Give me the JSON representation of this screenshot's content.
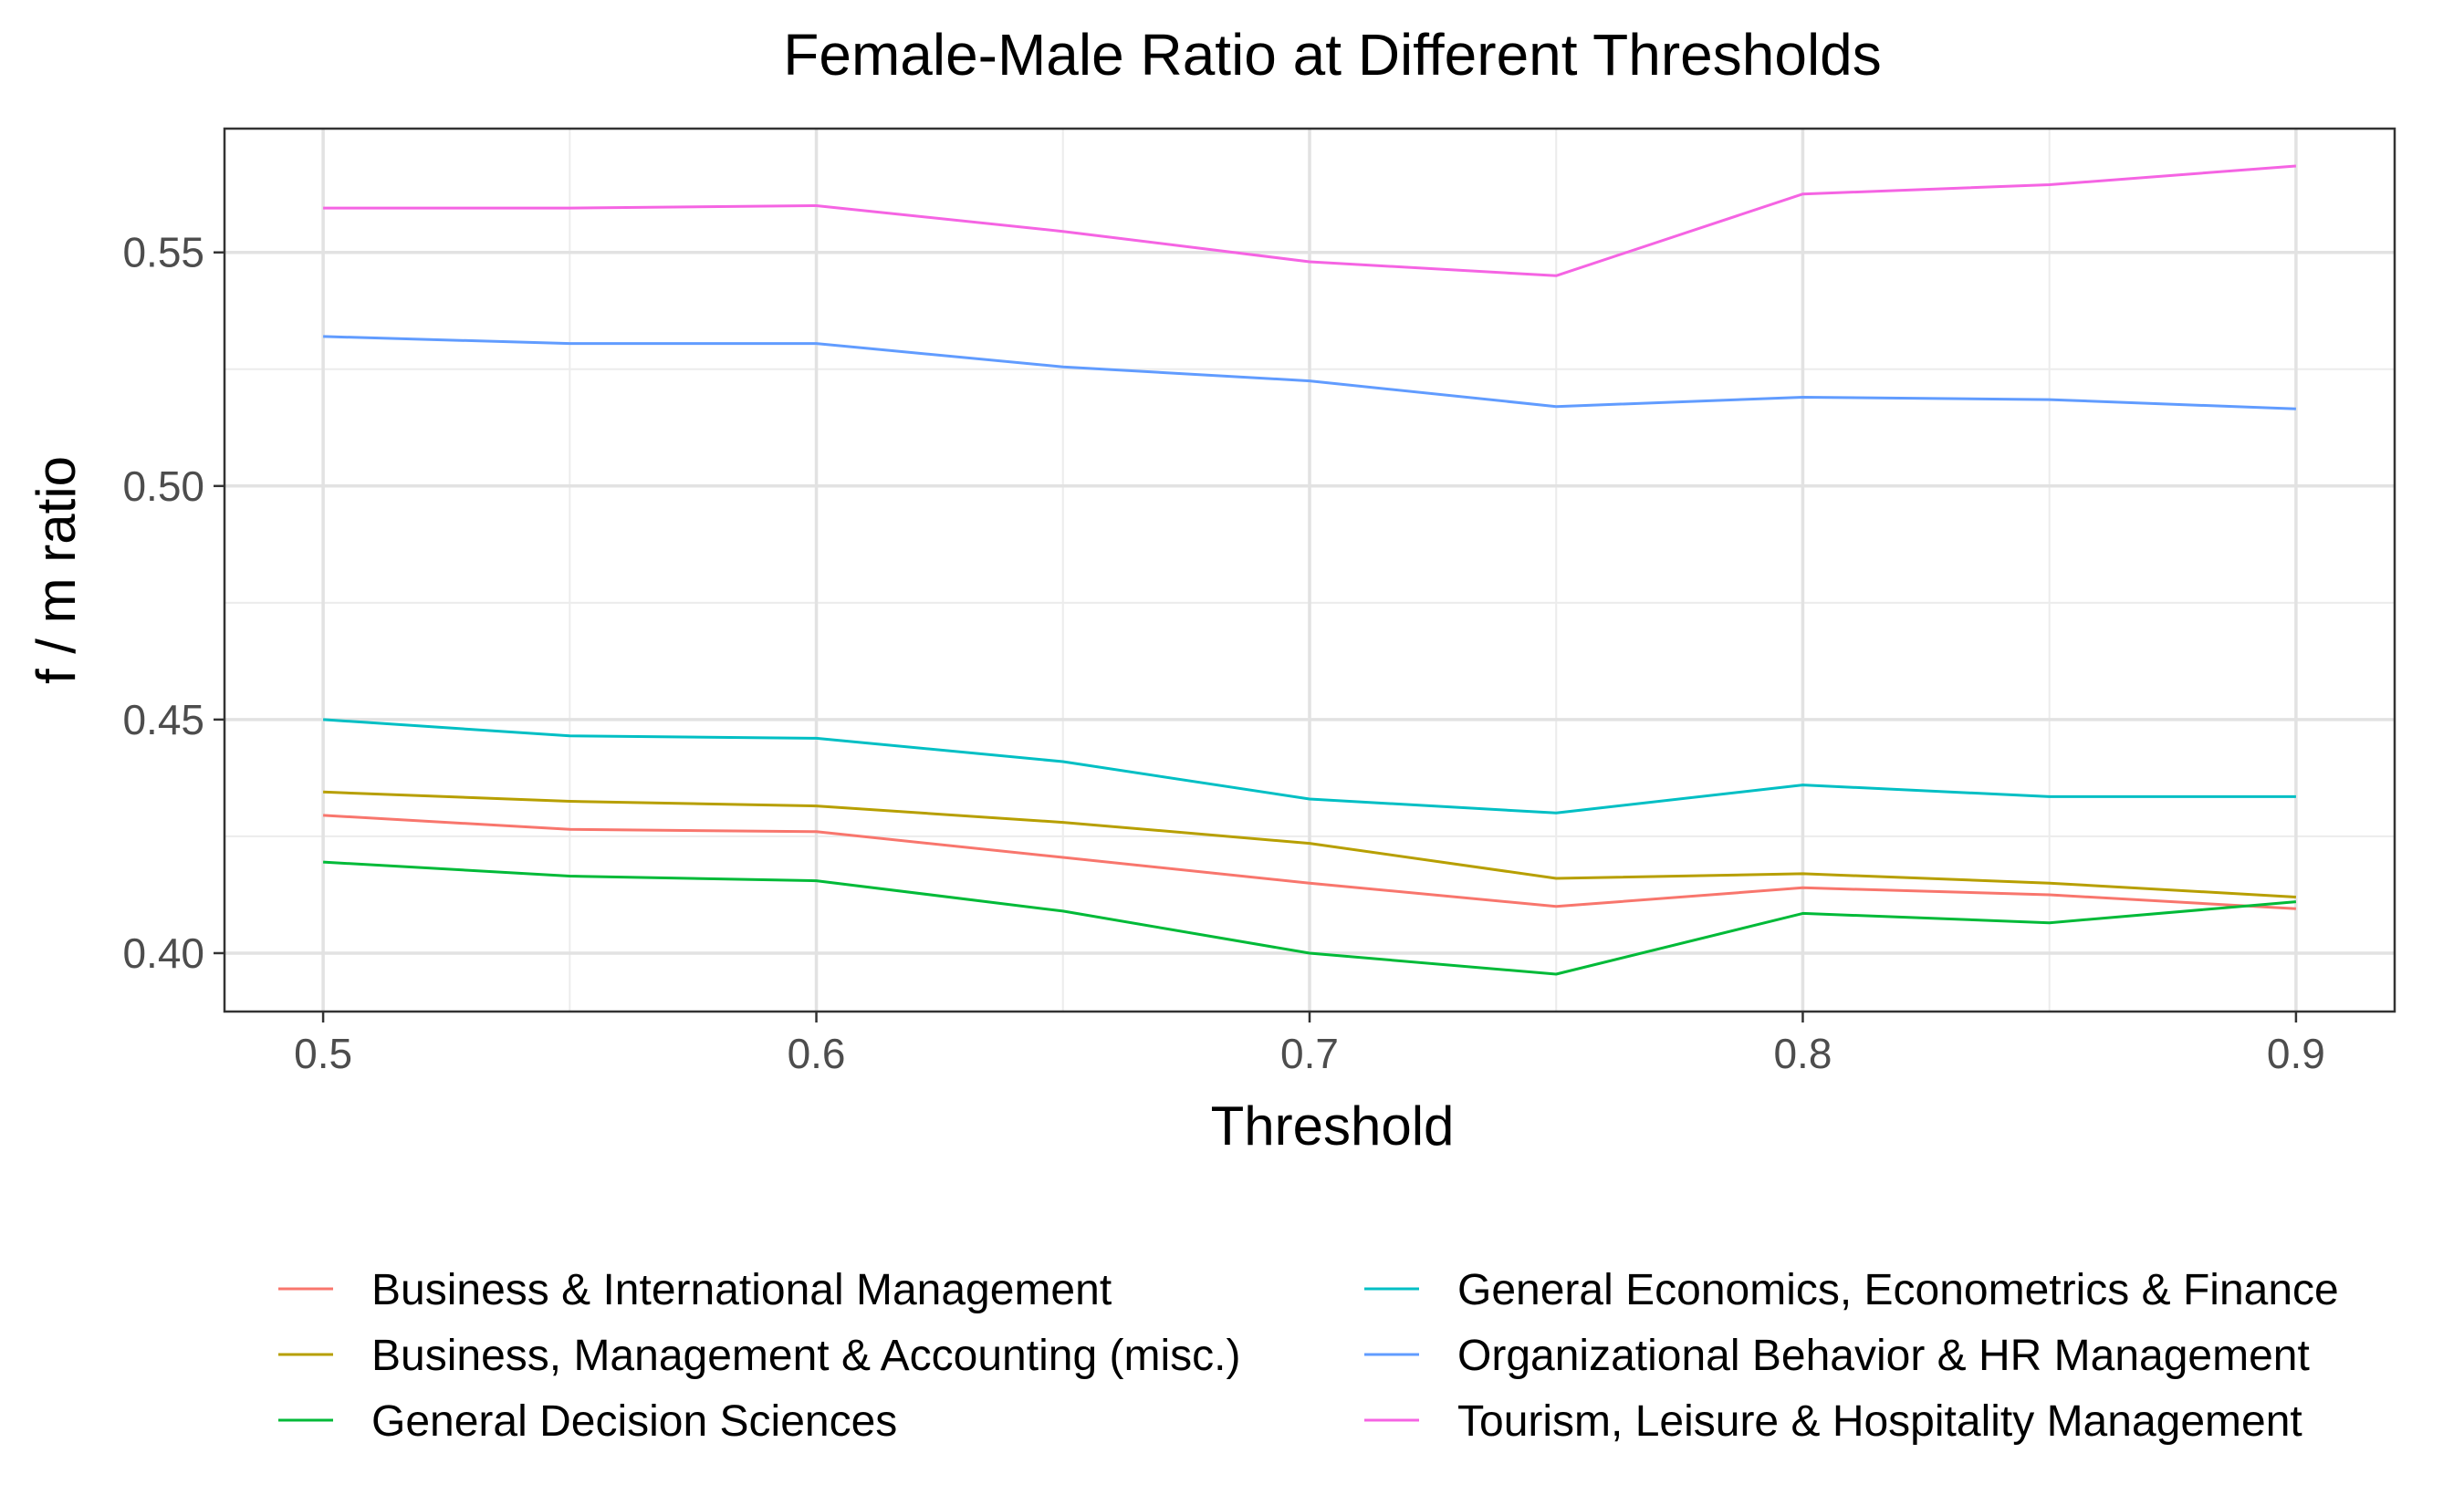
{
  "chart_data": {
    "type": "line",
    "title": "Female-Male Ratio at Different Thresholds",
    "xlabel": "Threshold",
    "ylabel": "f / m ratio",
    "x": [
      0.5,
      0.55,
      0.6,
      0.65,
      0.7,
      0.75,
      0.8,
      0.85,
      0.9
    ],
    "xlim": [
      0.48,
      0.92
    ],
    "ylim": [
      0.3875,
      0.5765
    ],
    "x_ticks": [
      0.5,
      0.6,
      0.7,
      0.8,
      0.9
    ],
    "x_tick_labels": [
      "0.5",
      "0.6",
      "0.7",
      "0.8",
      "0.9"
    ],
    "y_ticks": [
      0.4,
      0.45,
      0.5,
      0.55
    ],
    "y_tick_labels": [
      "0.40",
      "0.45",
      "0.50",
      "0.55"
    ],
    "grid": true,
    "legend_position": "bottom",
    "series": [
      {
        "name": "Business & International Management",
        "color": "#F8766D",
        "values": [
          0.4295,
          0.4265,
          0.426,
          0.4205,
          0.415,
          0.41,
          0.414,
          0.4125,
          0.4095
        ]
      },
      {
        "name": "Business, Management & Accounting (misc.)",
        "color": "#B79F00",
        "values": [
          0.4345,
          0.4325,
          0.4315,
          0.428,
          0.4235,
          0.416,
          0.417,
          0.415,
          0.412
        ]
      },
      {
        "name": "General Decision Sciences",
        "color": "#00BA38",
        "values": [
          0.4195,
          0.4165,
          0.4155,
          0.409,
          0.4,
          0.3955,
          0.4085,
          0.4065,
          0.411
        ]
      },
      {
        "name": "General Economics, Econometrics & Finance",
        "color": "#00BFC4",
        "values": [
          0.45,
          0.4465,
          0.446,
          0.441,
          0.433,
          0.43,
          0.436,
          0.4335,
          0.4335
        ]
      },
      {
        "name": "Organizational Behavior & HR Management",
        "color": "#619CFF",
        "values": [
          0.532,
          0.5305,
          0.5305,
          0.5255,
          0.5225,
          0.517,
          0.519,
          0.5185,
          0.5165
        ]
      },
      {
        "name": "Tourism, Leisure & Hospitality Management",
        "color": "#F564E3",
        "values": [
          0.5595,
          0.5595,
          0.56,
          0.5545,
          0.548,
          0.545,
          0.5625,
          0.5645,
          0.5685
        ]
      }
    ]
  }
}
